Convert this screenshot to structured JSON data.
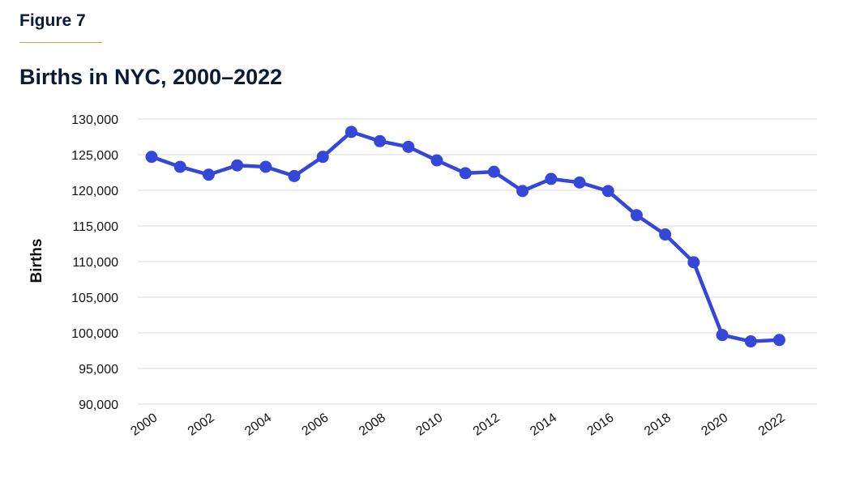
{
  "header": {
    "figure_label": "Figure 7",
    "title": "Births in NYC, 2000–2022"
  },
  "colors": {
    "line": "#3547d8",
    "grid": "#d9d9d9",
    "accent_rule": "#d4a23a",
    "text": "#0b1a3a"
  },
  "chart_data": {
    "type": "line",
    "title": "Births in NYC, 2000–2022",
    "xlabel": "",
    "ylabel": "Births",
    "ylim": [
      90000,
      130000
    ],
    "y_ticks": [
      90000,
      95000,
      100000,
      105000,
      110000,
      115000,
      120000,
      125000,
      130000
    ],
    "y_tick_labels": [
      "90,000",
      "95,000",
      "100,000",
      "105,000",
      "110,000",
      "115,000",
      "120,000",
      "125,000",
      "130,000"
    ],
    "x_tick_labels": [
      "2000",
      "2002",
      "2004",
      "2006",
      "2008",
      "2010",
      "2012",
      "2014",
      "2016",
      "2018",
      "2020",
      "2022"
    ],
    "grid": true,
    "legend": "none",
    "x": [
      2000,
      2001,
      2002,
      2003,
      2004,
      2005,
      2006,
      2007,
      2008,
      2009,
      2010,
      2011,
      2012,
      2013,
      2014,
      2015,
      2016,
      2017,
      2018,
      2019,
      2020,
      2021,
      2022
    ],
    "series": [
      {
        "values": [
          124700,
          123300,
          122200,
          123500,
          123300,
          122000,
          124700,
          128200,
          126900,
          126100,
          124200,
          122400,
          122600,
          119900,
          121600,
          121100,
          119900,
          116500,
          113800,
          109900,
          99700,
          98800,
          99000
        ]
      }
    ]
  }
}
